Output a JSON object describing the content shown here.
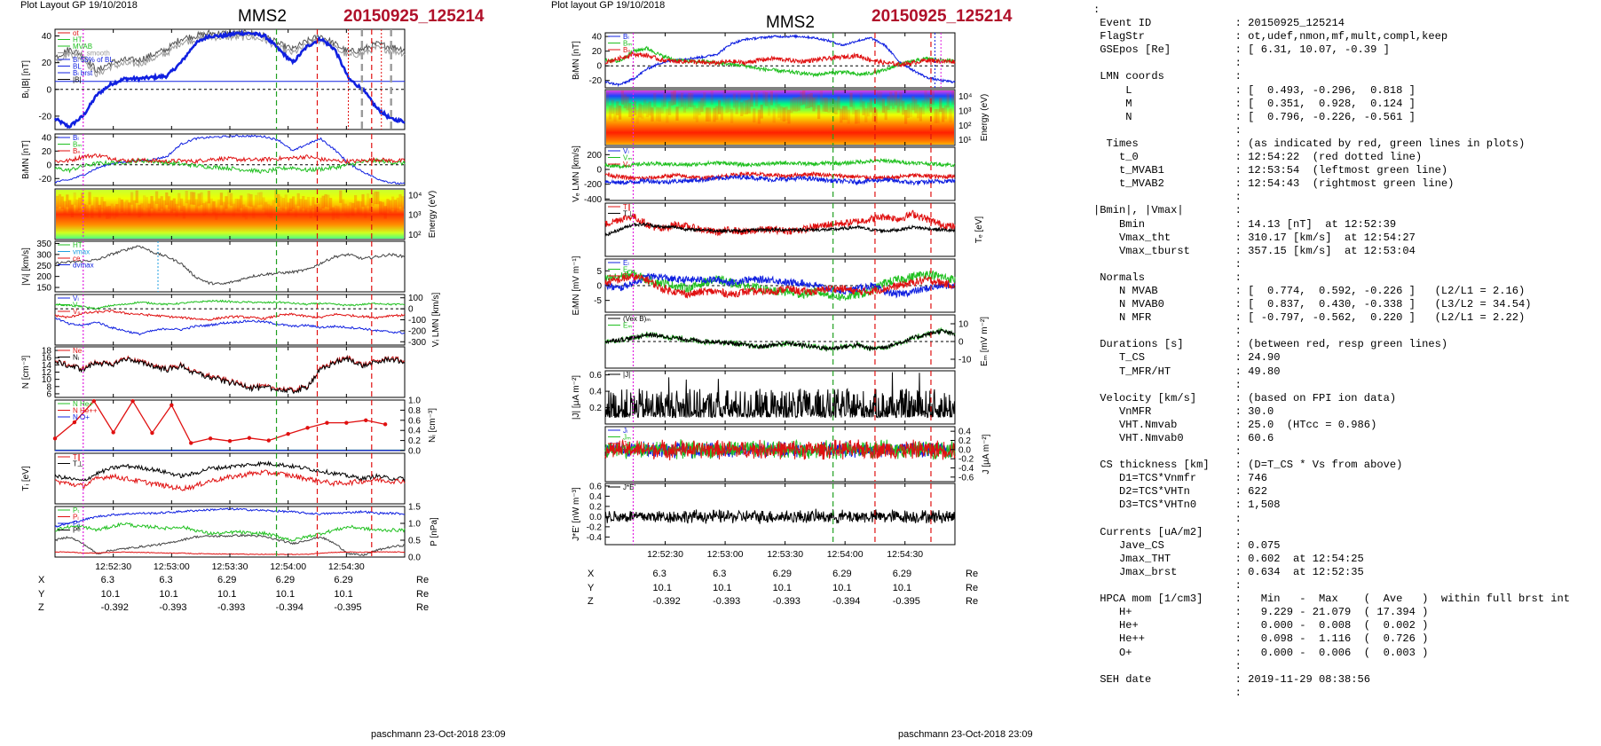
{
  "left": {
    "header_left": "Plot Layout GP 19/10/2018",
    "spacecraft": "MMS2",
    "event_id": "20150925_125214",
    "footer": "paschmann 23-Oct-2018 23:09",
    "ephemeris": {
      "rows": [
        {
          "label": "X",
          "values": [
            "6.3",
            "6.3",
            "6.29",
            "6.29",
            "6.29"
          ],
          "unit": "Re"
        },
        {
          "label": "Y",
          "values": [
            "10.1",
            "10.1",
            "10.1",
            "10.1",
            "10.1"
          ],
          "unit": "Re"
        },
        {
          "label": "Z",
          "values": [
            "-0.392",
            "-0.393",
            "-0.393",
            "-0.394",
            "-0.395"
          ],
          "unit": "Re"
        }
      ]
    }
  },
  "middle": {
    "header_left": "Plot layout GP 19/10/2018",
    "spacecraft": "MMS2",
    "event_id": "20150925_125214",
    "footer": "paschmann 23-Oct-2018 23:09",
    "ephemeris": {
      "rows": [
        {
          "label": "X",
          "values": [
            "6.3",
            "6.3",
            "6.29",
            "6.29",
            "6.29"
          ],
          "unit": "Re"
        },
        {
          "label": "Y",
          "values": [
            "10.1",
            "10.1",
            "10.1",
            "10.1",
            "10.1"
          ],
          "unit": "Re"
        },
        {
          "label": "Z",
          "values": [
            "-0.392",
            "-0.393",
            "-0.393",
            "-0.394",
            "-0.395"
          ],
          "unit": "Re"
        }
      ]
    }
  },
  "info_lines": [
    ":",
    " Event ID             : 20150925_125214",
    " FlagStr              : ot,udef,nmon,mf,mult,compl,keep",
    " GSEpos [Re]          : [ 6.31, 10.07, -0.39 ]",
    "                      :",
    " LMN coords           :",
    "     L                : [  0.493, -0.296,  0.818 ]",
    "     M                : [  0.351,  0.928,  0.124 ]",
    "     N                : [  0.796, -0.226, -0.561 ]",
    "                      :",
    "  Times               : (as indicated by red, green lines in plots)",
    "    t_0               : 12:54:22  (red dotted line)",
    "    t_MVAB1           : 12:53:54  (leftmost green line)",
    "    t_MVAB2           : 12:54:43  (rightmost green line)",
    "                      :",
    "|Bmin|, |Vmax|        :",
    "    Bmin              : 14.13 [nT]  at 12:52:39",
    "    Vmax_tht          : 310.17 [km/s]  at 12:54:27",
    "    Vmax_tburst       : 357.15 [km/s]  at 12:53:04",
    "                      :",
    " Normals              :",
    "    N MVAB            : [  0.774,  0.592, -0.226 ]   (L2/L1 = 2.16)",
    "    N MVAB0           : [  0.837,  0.430, -0.338 ]   (L3/L2 = 34.54)",
    "    N MFR             : [ -0.797, -0.562,  0.220 ]   (L2/L1 = 2.22)",
    "                      :",
    " Durations [s]        : (between red, resp green lines)",
    "    T_CS              : 24.90",
    "    T_MFR/HT          : 49.80",
    "                      :",
    " Velocity [km/s]      : (based on FPI ion data)",
    "    VnMFR             : 30.0",
    "    VHT.Nmvab         : 25.0  (HTcc = 0.986)",
    "    VHT.Nmvab0        : 60.6",
    "                      :",
    " CS thickness [km]    : (D=T_CS * Vs from above)",
    "    D1=TCS*Vnmfr      : 746",
    "    D2=TCS*VHTn       : 622",
    "    D3=TCS*VHTn0      : 1,508",
    "                      :",
    " Currents [uA/m2]     :",
    "    Jave_CS           : 0.075",
    "    Jmax_THT          : 0.602  at 12:54:25",
    "    Jmax_brst         : 0.634  at 12:52:35",
    "                      :",
    " HPCA mom [1/cm3]     :   Min   -  Max    (  Ave   )  within full brst int",
    "    H+                :   9.229 - 21.079  ( 17.394 )",
    "    He+               :   0.000 -  0.008  (  0.002 )",
    "    He++              :   0.098 -  1.116  (  0.726 )",
    "    O+                :   0.000 -  0.006  (  0.003 )",
    "                      :",
    " SEH date             : 2019-11-29 08:38:56",
    "                      :"
  ],
  "chart_data": [
    {
      "id": "left-stack",
      "type": "line",
      "x_ticks": [
        "12:52:30",
        "12:53:00",
        "12:53:30",
        "12:54:00",
        "12:54:30"
      ],
      "x_tick_times": [
        30,
        60,
        90,
        120,
        150
      ],
      "x_range": [
        0,
        180
      ],
      "x_range_note": "seconds after 12:52:00",
      "markers": [
        {
          "time": 14.5,
          "color": "#e020e0",
          "style": "dotted"
        },
        {
          "time": 114,
          "color": "#20a020",
          "style": "dashed"
        },
        {
          "time": 135,
          "color": "#e01010",
          "style": "dashed"
        },
        {
          "time": 163,
          "color": "#e01010",
          "style": "dashed"
        }
      ],
      "panels": [
        {
          "id": "B",
          "ylabel": "Bₗ,|B| [nT]",
          "ylim": [
            -30,
            45
          ],
          "yticks": [
            "40",
            "20",
            "0",
            "-20"
          ],
          "ytick_values": [
            40,
            20,
            0,
            -20
          ],
          "ylabel_side": "left",
          "legend": [
            "ot",
            "HT",
            "MVAB",
            "UV_smooth",
            "Bₗ 50% of BL",
            "BL",
            "Bₗ brst",
            "|B|"
          ]
        },
        {
          "id": "BLMN",
          "ylabel": "BₗMN [nT]",
          "ylim": [
            -30,
            45
          ],
          "yticks": [
            "40",
            "20",
            "0",
            "-20"
          ],
          "ytick_values": [
            40,
            20,
            0,
            -20
          ],
          "ylabel_side": "left",
          "legend": [
            "Bₗ",
            "Bₘ",
            "Bₙ"
          ]
        },
        {
          "id": "SPEC",
          "ylabel": "Energy (eV)",
          "yticks": [
            "10⁴",
            "10³",
            "10²"
          ],
          "ylabel_side": "right",
          "spectrogram": true
        },
        {
          "id": "Vi",
          "ylabel": "|Vᵢ| [km/s]",
          "ylim": [
            130,
            360
          ],
          "yticks": [
            "350",
            "300",
            "250",
            "200",
            "150"
          ],
          "ytick_values": [
            350,
            300,
            250,
            200,
            150
          ],
          "ylabel_side": "left",
          "legend": [
            "HT",
            "vmax",
            "ce",
            "dvmax"
          ]
        },
        {
          "id": "ViLMN",
          "ylabel": "Vᵢ LMN [km/s]",
          "ylim": [
            -330,
            130
          ],
          "yticks": [
            "100",
            "0",
            "-100",
            "-200",
            "-300"
          ],
          "ytick_values": [
            100,
            0,
            -100,
            -200,
            -300
          ],
          "ylabel_side": "right",
          "legend": [
            "Vₗ",
            "Vₘ",
            "Vₙ"
          ]
        },
        {
          "id": "N",
          "ylabel": "N [cm⁻³]",
          "ylim": [
            5,
            19
          ],
          "yticks": [
            "18",
            "16",
            "14",
            "12",
            "10",
            "8",
            "6"
          ],
          "ytick_values": [
            18,
            16,
            14,
            12,
            10,
            8,
            6
          ],
          "ylabel_side": "left",
          "legend": [
            "Ne",
            "Nᵢ"
          ]
        },
        {
          "id": "Ni",
          "ylabel": "Nᵢ [cm⁻³]",
          "ylim": [
            0,
            1
          ],
          "yticks": [
            "1.0",
            "0.8",
            "0.6",
            "0.4",
            "0.2",
            "0.0"
          ],
          "ytick_values": [
            1,
            0.8,
            0.6,
            0.4,
            0.2,
            0
          ],
          "ylabel_side": "right",
          "legend": [
            "N He+",
            "N He++",
            "N O+"
          ],
          "series": [
            {
              "name": "N He++",
              "color": "#e01010",
              "x": [
                0,
                10,
                20,
                30,
                40,
                50,
                60,
                70,
                80,
                90,
                100,
                110,
                120,
                130,
                140,
                150,
                160,
                170
              ],
              "values": [
                0.24,
                0.56,
                0.98,
                0.36,
                0.98,
                0.35,
                0.9,
                0.15,
                0.24,
                0.19,
                0.25,
                0.2,
                0.33,
                0.45,
                0.55,
                0.55,
                0.6,
                0.52
              ]
            }
          ]
        },
        {
          "id": "Ti",
          "ylabel": "Tᵢ [eV]",
          "ylabel_side": "left",
          "legend": [
            "T∥",
            "T⊥"
          ]
        },
        {
          "id": "P",
          "ylabel": "P [nPa]",
          "ylim": [
            0,
            1.5
          ],
          "yticks": [
            "1.5",
            "1.0",
            "0.5",
            "0.0"
          ],
          "ytick_values": [
            1.5,
            1,
            0.5,
            0
          ],
          "ylabel_side": "right",
          "legend": [
            "Pₜ",
            "Pᵢ",
            "Pₑ",
            "Pᴮ"
          ]
        }
      ]
    },
    {
      "id": "middle-stack",
      "type": "line",
      "x_ticks": [
        "12:52:30",
        "12:53:00",
        "12:53:30",
        "12:54:00",
        "12:54:30"
      ],
      "x_tick_times": [
        30,
        60,
        90,
        120,
        150
      ],
      "x_range": [
        0,
        175
      ],
      "x_range_note": "seconds after 12:52:00",
      "markers": [
        {
          "time": 14,
          "color": "#e020e0",
          "style": "dotted"
        },
        {
          "time": 114,
          "color": "#20a020",
          "style": "dashed"
        },
        {
          "time": 135,
          "color": "#e01010",
          "style": "dashed"
        },
        {
          "time": 163,
          "color": "#e01010",
          "style": "dashed"
        }
      ],
      "panels": [
        {
          "id": "B",
          "ylabel": "BₗMN [nT]",
          "ylim": [
            -30,
            45
          ],
          "yticks": [
            "40",
            "20",
            "0",
            "-20"
          ],
          "ytick_values": [
            40,
            20,
            0,
            -20
          ],
          "ylabel_side": "left",
          "legend": [
            "Bₗ",
            "Bₘ",
            "Bₙ"
          ]
        },
        {
          "id": "SPEC",
          "ylabel": "Energy (eV)",
          "yticks": [
            "10⁴",
            "10³",
            "10²",
            "10¹"
          ],
          "ylabel_side": "right",
          "spectrogram": true
        },
        {
          "id": "Ve",
          "ylabel": "Vₑ LMN [km/s]",
          "ylim": [
            -420,
            300
          ],
          "yticks": [
            "200",
            "0",
            "-200",
            "-400"
          ],
          "ytick_values": [
            200,
            0,
            -200,
            -400
          ],
          "ylabel_side": "left",
          "legend": [
            "Vₗ",
            "Vₘ",
            "Vₙ"
          ]
        },
        {
          "id": "Te",
          "ylabel": "Tₑ [eV]",
          "ylabel_side": "right",
          "legend": [
            "T∥",
            "T⊥"
          ]
        },
        {
          "id": "E",
          "ylabel": "EₗMN [mV m⁻¹]",
          "ylim": [
            -9,
            9
          ],
          "yticks": [
            "5",
            "0",
            "-5"
          ],
          "ytick_values": [
            5,
            0,
            -5
          ],
          "ylabel_side": "left",
          "legend": [
            "Eₗ",
            "Eₘ",
            "Eₙ"
          ]
        },
        {
          "id": "EM",
          "ylabel": "Eₘ [mV m⁻²]",
          "ylim": [
            -15,
            15
          ],
          "yticks": [
            "10",
            "0",
            "-10"
          ],
          "ytick_values": [
            10,
            0,
            -10
          ],
          "ylabel_side": "right",
          "legend": [
            "(Vex B)ₘ",
            "Eₘ"
          ]
        },
        {
          "id": "J",
          "ylabel": "|J| [μA m⁻²]",
          "ylim": [
            0,
            0.65
          ],
          "yticks": [
            "0.6",
            "0.4",
            "0.2"
          ],
          "ytick_values": [
            0.6,
            0.4,
            0.2
          ],
          "ylabel_side": "left",
          "legend": [
            "|J|"
          ]
        },
        {
          "id": "JLMN",
          "ylabel": "J [μA m⁻²]",
          "ylim": [
            -0.7,
            0.5
          ],
          "yticks": [
            "0.4",
            "0.2",
            "0.0",
            "-0.2",
            "-0.4",
            "-0.6"
          ],
          "ytick_values": [
            0.4,
            0.2,
            0,
            -0.2,
            -0.4,
            -0.6
          ],
          "ylabel_side": "right",
          "legend": [
            "Jₗ",
            "Jₘ",
            "Jₙ"
          ]
        },
        {
          "id": "JE",
          "ylabel": "J*E' [nW m⁻³]",
          "ylim": [
            -0.55,
            0.65
          ],
          "yticks": [
            "0.6",
            "0.4",
            "0.2",
            "0.0",
            "-0.2",
            "-0.4"
          ],
          "ytick_values": [
            0.6,
            0.4,
            0.2,
            0,
            -0.2,
            -0.4
          ],
          "ylabel_side": "left",
          "legend": [
            "J*E'"
          ]
        }
      ]
    }
  ],
  "colors": {
    "red": "#e01010",
    "green": "#20c020",
    "blue": "#1020e0",
    "black": "#000000",
    "magenta": "#e020e0",
    "grey": "#9a9a9a",
    "title_red": "#b0102a"
  }
}
